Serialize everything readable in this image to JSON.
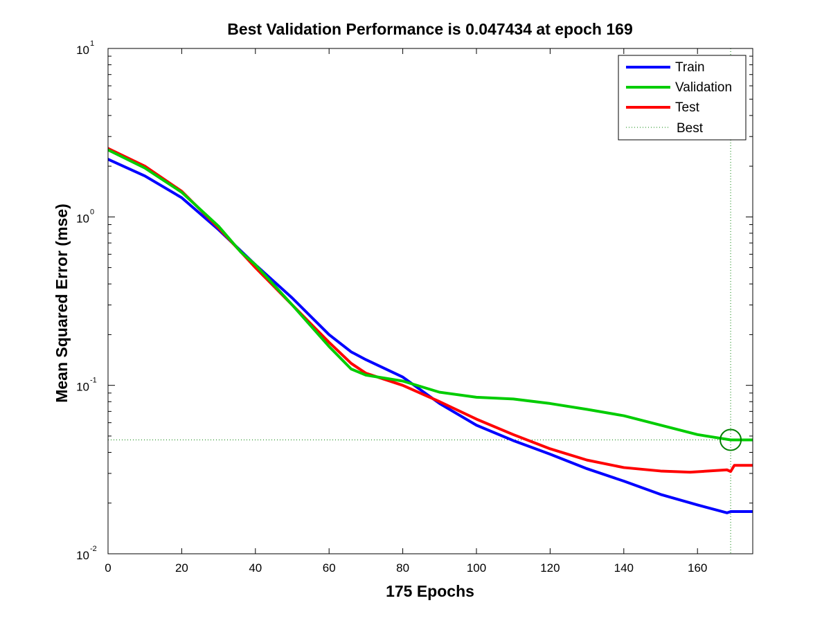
{
  "chart_data": {
    "type": "line",
    "title": "Best Validation Performance is 0.047434 at epoch 169",
    "xlabel": "175 Epochs",
    "ylabel": "Mean Squared Error  (mse)",
    "xlim": [
      0,
      175
    ],
    "ylim": [
      0.01,
      10
    ],
    "yscale": "log",
    "x_ticks": [
      0,
      20,
      40,
      60,
      80,
      100,
      120,
      140,
      160
    ],
    "y_ticks": [
      {
        "value": 0.01,
        "base": "10",
        "exp": "-2"
      },
      {
        "value": 0.1,
        "base": "10",
        "exp": "-1"
      },
      {
        "value": 1,
        "base": "10",
        "exp": "0"
      },
      {
        "value": 10,
        "base": "10",
        "exp": "1"
      }
    ],
    "legend_position": "top-right",
    "grid": false,
    "series": [
      {
        "name": "Train",
        "color": "#0000ff",
        "x": [
          0,
          10,
          20,
          30,
          40,
          50,
          60,
          66,
          70,
          80,
          90,
          100,
          110,
          120,
          130,
          140,
          150,
          160,
          168,
          169,
          175
        ],
        "y": [
          2.2,
          1.75,
          1.3,
          0.84,
          0.52,
          0.33,
          0.2,
          0.158,
          0.142,
          0.112,
          0.078,
          0.058,
          0.047,
          0.039,
          0.032,
          0.027,
          0.0225,
          0.0195,
          0.0175,
          0.0178,
          0.0178
        ]
      },
      {
        "name": "Validation",
        "color": "#00cc00",
        "x": [
          0,
          10,
          20,
          30,
          36,
          40,
          50,
          60,
          66,
          70,
          80,
          90,
          100,
          110,
          120,
          130,
          140,
          150,
          160,
          169,
          175
        ],
        "y": [
          2.5,
          1.95,
          1.4,
          0.88,
          0.62,
          0.52,
          0.3,
          0.17,
          0.125,
          0.115,
          0.106,
          0.091,
          0.085,
          0.083,
          0.078,
          0.072,
          0.066,
          0.058,
          0.051,
          0.047434,
          0.047434
        ]
      },
      {
        "name": "Test",
        "color": "#ff0000",
        "x": [
          0,
          10,
          20,
          30,
          40,
          50,
          60,
          66,
          70,
          80,
          90,
          100,
          110,
          120,
          130,
          140,
          150,
          158,
          168,
          169,
          170,
          175
        ],
        "y": [
          2.55,
          2.0,
          1.42,
          0.86,
          0.5,
          0.3,
          0.18,
          0.135,
          0.118,
          0.1,
          0.08,
          0.063,
          0.051,
          0.042,
          0.036,
          0.0325,
          0.031,
          0.0305,
          0.0315,
          0.0308,
          0.0335,
          0.0335
        ]
      }
    ],
    "best": {
      "name": "Best",
      "epoch": 169,
      "value": 0.047434,
      "color": "#008000"
    }
  }
}
